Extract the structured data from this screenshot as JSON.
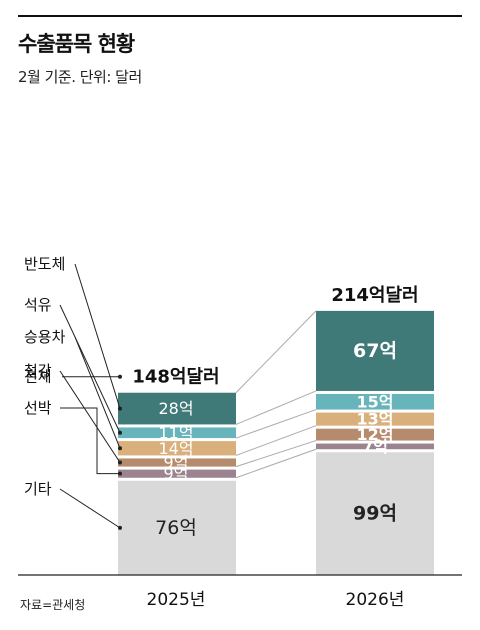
{
  "title": "수출품목 현황",
  "subtitle": "2월 기준. 단위: 달러",
  "source": "자료=관세청",
  "chart_data": {
    "type": "bar",
    "stacked": true,
    "categories": [
      "2025년",
      "2026년"
    ],
    "totals": [
      148,
      214
    ],
    "total_labels": [
      "148억달러",
      "214억달러"
    ],
    "total_label_title": "전체",
    "series": [
      {
        "name": "기타",
        "values": [
          76,
          99
        ],
        "labels": [
          "76억",
          "99억"
        ],
        "color": "#d9d9d9"
      },
      {
        "name": "선박",
        "values": [
          9,
          7
        ],
        "labels": [
          "9억",
          "7억"
        ],
        "color": "#9c8390"
      },
      {
        "name": "철강",
        "values": [
          9,
          12
        ],
        "labels": [
          "9억",
          "12억"
        ],
        "color": "#b68a6c"
      },
      {
        "name": "승용차",
        "values": [
          14,
          13
        ],
        "labels": [
          "14억",
          "13억"
        ],
        "color": "#d9b07c"
      },
      {
        "name": "석유",
        "values": [
          11,
          15
        ],
        "labels": [
          "11억",
          "15억"
        ],
        "color": "#67b4bb"
      },
      {
        "name": "반도체",
        "values": [
          28,
          67
        ],
        "labels": [
          "28억",
          "67억"
        ],
        "color": "#3f7a78"
      }
    ]
  }
}
